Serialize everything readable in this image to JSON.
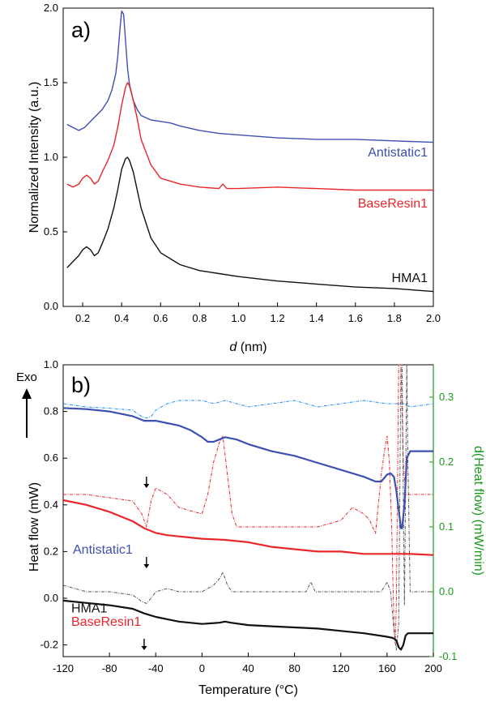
{
  "chart_data": [
    {
      "type": "line",
      "panel_label": "a)",
      "xlabel_italic": "d",
      "xlabel_rest": " (nm)",
      "ylabel": "Normalized Intensity (a.u.)",
      "xlim": [
        0.1,
        2.0
      ],
      "ylim": [
        0.0,
        2.0
      ],
      "xticks": [
        "0.2",
        "0.4",
        "0.6",
        "0.8",
        "1.0",
        "1.2",
        "1.4",
        "1.6",
        "1.8",
        "2.0"
      ],
      "yticks": [
        "0.0",
        "0.5",
        "1.0",
        "1.5",
        "2.0"
      ],
      "series": [
        {
          "name": "Antistatic1",
          "color": "#3d4fb0",
          "x": [
            0.12,
            0.15,
            0.18,
            0.21,
            0.24,
            0.27,
            0.3,
            0.33,
            0.35,
            0.37,
            0.38,
            0.39,
            0.4,
            0.41,
            0.42,
            0.43,
            0.44,
            0.46,
            0.48,
            0.5,
            0.55,
            0.6,
            0.65,
            0.7,
            0.8,
            0.9,
            1.0,
            1.2,
            1.4,
            1.6,
            1.8,
            2.0
          ],
          "y": [
            1.22,
            1.2,
            1.18,
            1.2,
            1.24,
            1.28,
            1.32,
            1.38,
            1.45,
            1.56,
            1.67,
            1.84,
            1.98,
            1.96,
            1.78,
            1.6,
            1.49,
            1.38,
            1.32,
            1.28,
            1.25,
            1.24,
            1.23,
            1.21,
            1.18,
            1.16,
            1.15,
            1.13,
            1.12,
            1.12,
            1.11,
            1.1
          ]
        },
        {
          "name": "BaseResin1",
          "color": "#e8262b",
          "x": [
            0.12,
            0.15,
            0.18,
            0.2,
            0.22,
            0.24,
            0.26,
            0.28,
            0.3,
            0.33,
            0.36,
            0.38,
            0.4,
            0.42,
            0.43,
            0.44,
            0.46,
            0.48,
            0.5,
            0.55,
            0.6,
            0.7,
            0.8,
            0.9,
            0.92,
            0.94,
            1.0,
            1.2,
            1.4,
            1.6,
            1.8,
            2.0
          ],
          "y": [
            0.82,
            0.8,
            0.82,
            0.86,
            0.88,
            0.86,
            0.82,
            0.84,
            0.9,
            0.98,
            1.08,
            1.2,
            1.35,
            1.47,
            1.5,
            1.48,
            1.38,
            1.26,
            1.12,
            0.95,
            0.86,
            0.82,
            0.8,
            0.79,
            0.82,
            0.79,
            0.79,
            0.8,
            0.79,
            0.78,
            0.78,
            0.78
          ]
        },
        {
          "name": "HMA1",
          "color": "#111111",
          "x": [
            0.12,
            0.15,
            0.18,
            0.2,
            0.22,
            0.24,
            0.26,
            0.28,
            0.3,
            0.33,
            0.36,
            0.38,
            0.4,
            0.42,
            0.43,
            0.44,
            0.46,
            0.48,
            0.5,
            0.55,
            0.6,
            0.7,
            0.8,
            0.9,
            1.0,
            1.2,
            1.4,
            1.6,
            1.8,
            2.0
          ],
          "y": [
            0.26,
            0.3,
            0.34,
            0.38,
            0.4,
            0.38,
            0.34,
            0.36,
            0.42,
            0.52,
            0.66,
            0.78,
            0.92,
            0.99,
            1.0,
            0.98,
            0.9,
            0.78,
            0.66,
            0.46,
            0.36,
            0.28,
            0.24,
            0.22,
            0.2,
            0.17,
            0.15,
            0.13,
            0.12,
            0.1
          ]
        }
      ],
      "labels": [
        {
          "text": "Antistatic1",
          "color": "#3d4fb0"
        },
        {
          "text": "BaseResin1",
          "color": "#e8262b"
        },
        {
          "text": "HMA1",
          "color": "#111111"
        }
      ]
    },
    {
      "type": "line",
      "panel_label": "b)",
      "xlabel": "Temperature (°C)",
      "ylabel": "Heat flow (mW)",
      "ylabel_right": "d(Heat flow) (mW/min)",
      "exo_label": "Exo",
      "xlim": [
        -120,
        200
      ],
      "ylim": [
        -0.25,
        1.0
      ],
      "ylim_right": [
        -0.1,
        0.35
      ],
      "xticks": [
        "-120",
        "-80",
        "-40",
        "0",
        "40",
        "80",
        "120",
        "160",
        "200"
      ],
      "yticks": [
        "-0.2",
        "0.0",
        "0.2",
        "0.4",
        "0.6",
        "0.8",
        "1.0"
      ],
      "yticks_right": [
        "-0.1",
        "0.0",
        "0.1",
        "0.2",
        "0.3"
      ],
      "series": [
        {
          "name": "Antistatic1",
          "color": "#3d4fb0",
          "x": [
            -120,
            -100,
            -80,
            -60,
            -50,
            -45,
            -40,
            -30,
            -20,
            -10,
            0,
            5,
            10,
            15,
            20,
            30,
            40,
            60,
            80,
            100,
            120,
            140,
            150,
            155,
            160,
            163,
            166,
            168,
            170,
            172,
            173,
            175,
            177,
            180,
            190,
            200
          ],
          "y": [
            0.815,
            0.81,
            0.8,
            0.78,
            0.76,
            0.76,
            0.76,
            0.75,
            0.74,
            0.72,
            0.69,
            0.67,
            0.67,
            0.68,
            0.69,
            0.68,
            0.66,
            0.63,
            0.61,
            0.58,
            0.55,
            0.52,
            0.5,
            0.5,
            0.53,
            0.535,
            0.52,
            0.46,
            0.38,
            0.3,
            0.3,
            0.4,
            0.6,
            0.63,
            0.63,
            0.63
          ]
        },
        {
          "name": "BaseResin1",
          "color": "#e8262b",
          "x": [
            -120,
            -100,
            -80,
            -60,
            -50,
            -40,
            -30,
            -20,
            -10,
            0,
            20,
            40,
            60,
            80,
            100,
            120,
            140,
            160,
            180,
            200
          ],
          "y": [
            0.42,
            0.4,
            0.37,
            0.33,
            0.3,
            0.28,
            0.27,
            0.265,
            0.26,
            0.255,
            0.25,
            0.24,
            0.22,
            0.21,
            0.2,
            0.2,
            0.19,
            0.19,
            0.19,
            0.185
          ]
        },
        {
          "name": "HMA1",
          "color": "#111111",
          "x": [
            -120,
            -100,
            -80,
            -60,
            -50,
            -40,
            -30,
            -20,
            0,
            15,
            20,
            25,
            40,
            60,
            80,
            100,
            120,
            140,
            160,
            165,
            168,
            170,
            172,
            174,
            176,
            178,
            180,
            190,
            200
          ],
          "y": [
            -0.01,
            -0.02,
            -0.03,
            -0.045,
            -0.065,
            -0.08,
            -0.09,
            -0.1,
            -0.11,
            -0.105,
            -0.1,
            -0.105,
            -0.115,
            -0.12,
            -0.125,
            -0.13,
            -0.14,
            -0.15,
            -0.165,
            -0.17,
            -0.18,
            -0.21,
            -0.22,
            -0.2,
            -0.16,
            -0.15,
            -0.15,
            -0.15,
            -0.15
          ]
        }
      ],
      "derivative_series": [
        {
          "name": "Antistatic1",
          "color": "#1e90ff",
          "x": [
            -120,
            -100,
            -80,
            -60,
            -52,
            -48,
            -44,
            -40,
            -30,
            -20,
            -10,
            0,
            10,
            20,
            30,
            40,
            60,
            80,
            100,
            120,
            140,
            160,
            165,
            170,
            175,
            180,
            200
          ],
          "y": [
            0.29,
            0.285,
            0.283,
            0.28,
            0.27,
            0.268,
            0.27,
            0.28,
            0.29,
            0.295,
            0.295,
            0.295,
            0.29,
            0.295,
            0.29,
            0.285,
            0.29,
            0.295,
            0.285,
            0.29,
            0.295,
            0.29,
            0.29,
            0.29,
            0.29,
            0.285,
            0.29
          ]
        },
        {
          "name": "BaseResin1",
          "color": "#e8262b",
          "x": [
            -120,
            -100,
            -80,
            -60,
            -52,
            -48,
            -44,
            -40,
            -30,
            -20,
            -10,
            0,
            5,
            10,
            15,
            18,
            22,
            26,
            30,
            40,
            60,
            80,
            100,
            120,
            130,
            140,
            145,
            150,
            155,
            158,
            160,
            162,
            164,
            165,
            166,
            167,
            168,
            169,
            170,
            172,
            174,
            176,
            178,
            180,
            185,
            200
          ],
          "y": [
            0.15,
            0.15,
            0.145,
            0.14,
            0.12,
            0.1,
            0.14,
            0.16,
            0.15,
            0.13,
            0.125,
            0.12,
            0.15,
            0.2,
            0.23,
            0.24,
            0.18,
            0.12,
            0.1,
            0.1,
            0.1,
            0.1,
            0.1,
            0.11,
            0.13,
            0.12,
            0.11,
            0.09,
            0.18,
            0.22,
            0.24,
            0.2,
            0.1,
            0.02,
            -0.05,
            -0.08,
            -0.02,
            0.15,
            0.35,
            0.35,
            0.2,
            0.15,
            0.15,
            0.15,
            0.15,
            0.15
          ]
        },
        {
          "name": "HMA1",
          "color": "#555555",
          "x": [
            -120,
            -100,
            -80,
            -60,
            -52,
            -48,
            -44,
            -40,
            -30,
            -20,
            -10,
            0,
            10,
            15,
            18,
            22,
            26,
            30,
            40,
            60,
            80,
            90,
            94,
            98,
            100,
            120,
            140,
            155,
            160,
            163,
            166,
            168,
            170,
            171,
            172,
            173,
            174,
            175,
            176,
            177,
            178,
            180,
            200
          ],
          "y": [
            0.01,
            0.0,
            0.0,
            -0.005,
            -0.015,
            -0.018,
            -0.01,
            0.0,
            0.005,
            0.0,
            0.0,
            0.0,
            0.01,
            0.02,
            0.03,
            0.01,
            0.0,
            0.0,
            0.0,
            0.0,
            0.0,
            0.0,
            0.015,
            0.0,
            0.0,
            0.0,
            0.0,
            0.0,
            0.015,
            0.0,
            -0.06,
            -0.09,
            -0.05,
            0.15,
            0.35,
            0.35,
            0.15,
            -0.02,
            0.15,
            0.35,
            0.2,
            0.0,
            0.0
          ]
        }
      ],
      "labels": [
        {
          "text": "Antistatic1",
          "color": "#3d4fb0"
        },
        {
          "text": "BaseResin1",
          "color": "#e8262b"
        },
        {
          "text": "HMA1",
          "color": "#111111"
        }
      ],
      "glass_transition_arrows_x": [
        -48,
        -48,
        -50
      ]
    }
  ]
}
